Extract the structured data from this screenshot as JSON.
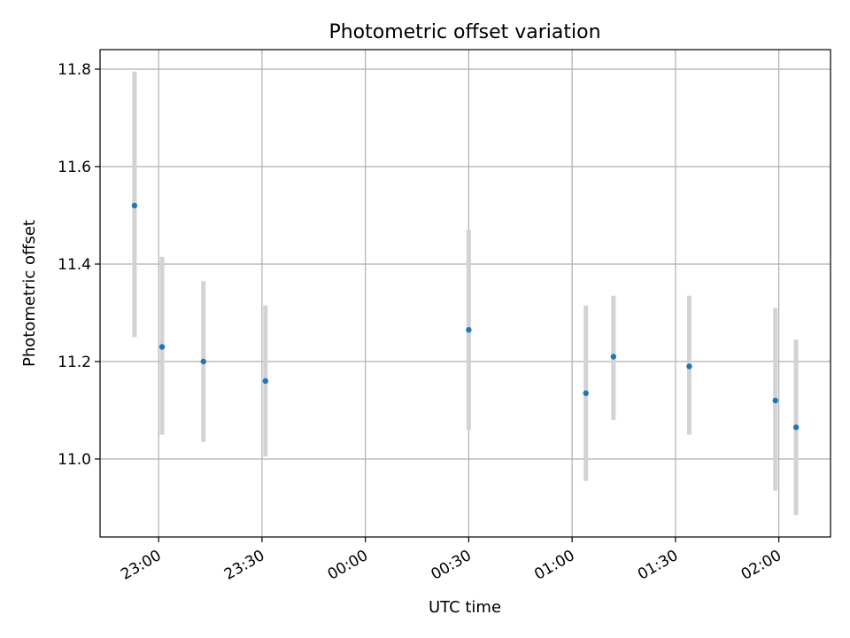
{
  "chart_data": {
    "type": "scatter",
    "title": "Photometric offset variation",
    "xlabel": "UTC time",
    "ylabel": "Photometric offset",
    "x_is_time": true,
    "x_tick_labels": [
      "23:00",
      "23:30",
      "00:00",
      "00:30",
      "01:00",
      "01:30",
      "02:00"
    ],
    "xlim": [
      "22:43",
      "02:15"
    ],
    "ylim": [
      10.84,
      11.84
    ],
    "y_ticks": [
      11.0,
      11.2,
      11.4,
      11.6,
      11.8
    ],
    "y_tick_labels": [
      "11.0",
      "11.2",
      "11.4",
      "11.6",
      "11.8"
    ],
    "grid": true,
    "series": [
      {
        "x": [
          "22:53",
          "23:01",
          "23:13",
          "23:31",
          "00:30",
          "01:04",
          "01:12",
          "01:34",
          "01:59",
          "02:05"
        ],
        "y": [
          11.52,
          11.23,
          11.2,
          11.16,
          11.265,
          11.135,
          11.21,
          11.19,
          11.12,
          11.065
        ],
        "err_low": [
          11.25,
          11.05,
          11.035,
          11.005,
          11.06,
          10.955,
          11.08,
          11.05,
          10.935,
          10.885
        ],
        "err_high": [
          11.795,
          11.415,
          11.365,
          11.315,
          11.47,
          11.315,
          11.335,
          11.335,
          11.31,
          11.245
        ]
      }
    ],
    "colors": {
      "point": "#1f77b4",
      "errorbar": "#d3d3d3",
      "grid": "#b0b0b0",
      "axes": "#000000"
    }
  }
}
